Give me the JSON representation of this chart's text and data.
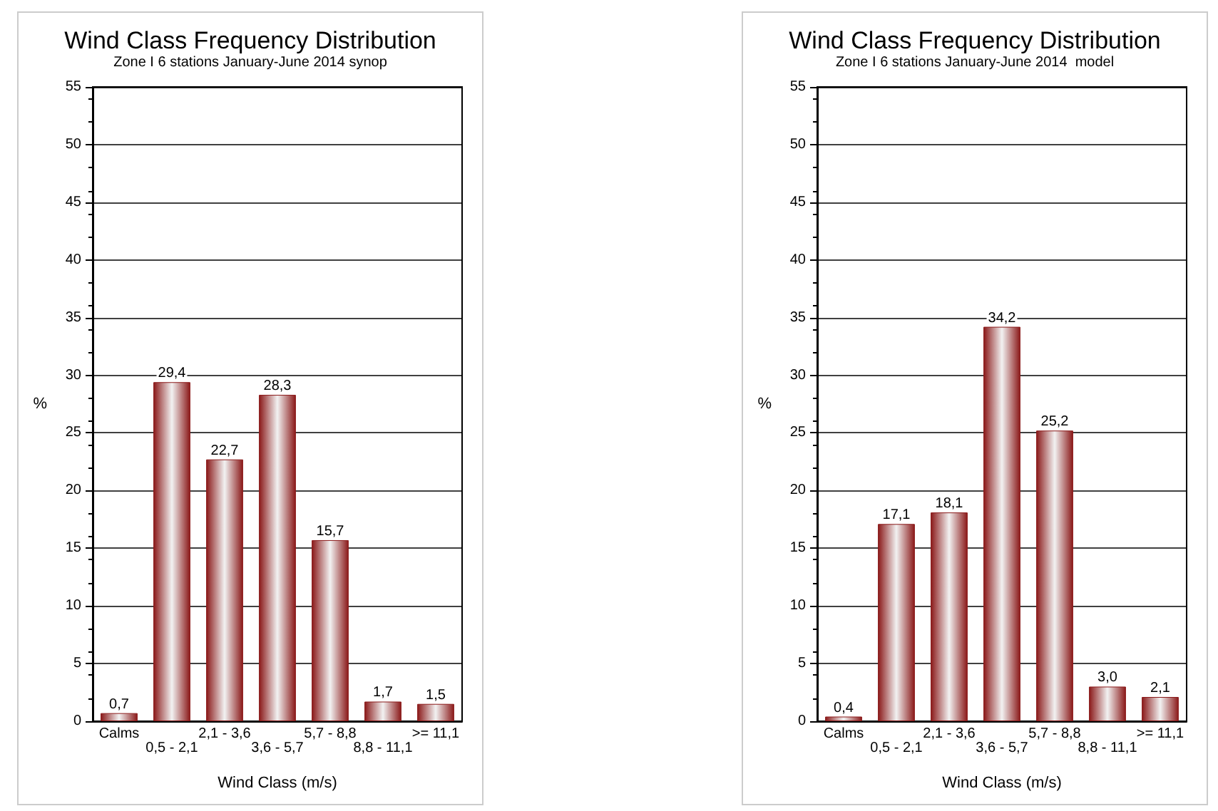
{
  "chart_data": [
    {
      "type": "bar",
      "title": "Wind Class Frequency Distribution",
      "subtitle": "Zone I 6 stations January-June 2014 synop",
      "xlabel": "Wind Class (m/s)",
      "ylabel": "%",
      "categories": [
        "Calms",
        "0,5 - 2,1",
        "2,1 - 3,6",
        "3,6 - 5,7",
        "5,7 - 8,8",
        "8,8 - 11,1",
        ">= 11,1"
      ],
      "values": [
        0.7,
        29.4,
        22.7,
        28.3,
        15.7,
        1.7,
        1.5
      ],
      "value_labels": [
        "0,7",
        "29,4",
        "22,7",
        "28,3",
        "15,7",
        "1,7",
        "1,5"
      ],
      "color": "#8b1a1a",
      "ylim": [
        0,
        55
      ],
      "yticks": [
        0,
        5,
        10,
        15,
        20,
        25,
        30,
        35,
        40,
        45,
        50,
        55
      ],
      "grid": "y"
    },
    {
      "type": "bar",
      "title": "Wind Class Frequency Distribution",
      "subtitle": "Zone I 6 stations January-June 2014  model",
      "xlabel": "Wind Class (m/s)",
      "ylabel": "%",
      "categories": [
        "Calms",
        "0,5 - 2,1",
        "2,1 - 3,6",
        "3,6 - 5,7",
        "5,7 - 8,8",
        "8,8 - 11,1",
        ">= 11,1"
      ],
      "values": [
        0.4,
        17.1,
        18.1,
        34.2,
        25.2,
        3.0,
        2.1
      ],
      "value_labels": [
        "0,4",
        "17,1",
        "18,1",
        "34,2",
        "25,2",
        "3,0",
        "2,1"
      ],
      "color": "#8b1a1a",
      "ylim": [
        0,
        55
      ],
      "yticks": [
        0,
        5,
        10,
        15,
        20,
        25,
        30,
        35,
        40,
        45,
        50,
        55
      ],
      "grid": "y"
    }
  ]
}
